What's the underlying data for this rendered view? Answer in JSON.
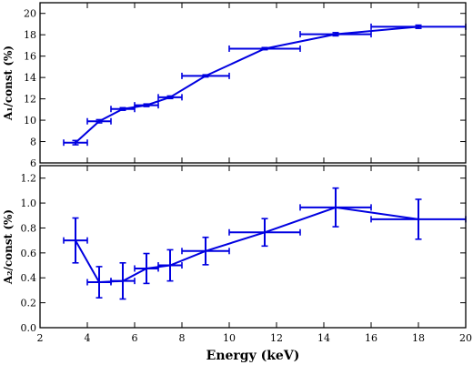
{
  "chart_data": [
    {
      "type": "line",
      "panel": "top",
      "ylabel": "A₁/const (%)",
      "xlabel": "",
      "xlim": [
        2,
        20
      ],
      "ylim": [
        6,
        21
      ],
      "x_ticks": [
        2,
        4,
        6,
        8,
        10,
        12,
        14,
        16,
        18,
        20
      ],
      "y_ticks": [
        6,
        8,
        10,
        12,
        14,
        16,
        18,
        20
      ],
      "y_tick_labels": [
        "6",
        "8",
        "10",
        "12",
        "14",
        "16",
        "18",
        "20"
      ],
      "grid": false,
      "color": "#0000e0",
      "series": [
        {
          "points": [
            {
              "x": 3.5,
              "xmin": 3.0,
              "xmax": 4.0,
              "y": 7.9,
              "yerr": 0.2
            },
            {
              "x": 4.5,
              "xmin": 4.0,
              "xmax": 5.0,
              "y": 9.9,
              "yerr": 0.15
            },
            {
              "x": 5.5,
              "xmin": 5.0,
              "xmax": 6.0,
              "y": 11.05,
              "yerr": 0.12
            },
            {
              "x": 6.5,
              "xmin": 6.0,
              "xmax": 7.0,
              "y": 11.4,
              "yerr": 0.12
            },
            {
              "x": 7.5,
              "xmin": 7.0,
              "xmax": 8.0,
              "y": 12.15,
              "yerr": 0.12
            },
            {
              "x": 9.0,
              "xmin": 8.0,
              "xmax": 10.0,
              "y": 14.15,
              "yerr": 0.1
            },
            {
              "x": 11.5,
              "xmin": 10.0,
              "xmax": 13.0,
              "y": 16.7,
              "yerr": 0.1
            },
            {
              "x": 14.5,
              "xmin": 13.0,
              "xmax": 16.0,
              "y": 18.05,
              "yerr": 0.15
            },
            {
              "x": 18.0,
              "xmin": 16.0,
              "xmax": 20.0,
              "y": 18.75,
              "yerr": 0.15
            }
          ]
        }
      ]
    },
    {
      "type": "line",
      "panel": "bottom",
      "ylabel": "A₂/const (%)",
      "xlabel": "Energy (keV)",
      "xlim": [
        2,
        20
      ],
      "ylim": [
        0,
        1.3
      ],
      "x_ticks": [
        2,
        4,
        6,
        8,
        10,
        12,
        14,
        16,
        18,
        20
      ],
      "x_tick_labels": [
        "2",
        "4",
        "6",
        "8",
        "10",
        "12",
        "14",
        "16",
        "18",
        "20"
      ],
      "y_ticks": [
        0.0,
        0.2,
        0.4,
        0.6,
        0.8,
        1.0,
        1.2
      ],
      "y_tick_labels": [
        "0.0",
        "0.2",
        "0.4",
        "0.6",
        "0.8",
        "1.0",
        "1.2"
      ],
      "grid": false,
      "color": "#0000e0",
      "series": [
        {
          "points": [
            {
              "x": 3.5,
              "xmin": 3.0,
              "xmax": 4.0,
              "y": 0.7,
              "yerr": 0.18
            },
            {
              "x": 4.5,
              "xmin": 4.0,
              "xmax": 5.0,
              "y": 0.365,
              "yerr": 0.125
            },
            {
              "x": 5.5,
              "xmin": 5.0,
              "xmax": 6.0,
              "y": 0.375,
              "yerr": 0.145
            },
            {
              "x": 6.5,
              "xmin": 6.0,
              "xmax": 7.0,
              "y": 0.475,
              "yerr": 0.12
            },
            {
              "x": 7.5,
              "xmin": 7.0,
              "xmax": 8.0,
              "y": 0.5,
              "yerr": 0.125
            },
            {
              "x": 9.0,
              "xmin": 8.0,
              "xmax": 10.0,
              "y": 0.615,
              "yerr": 0.11
            },
            {
              "x": 11.5,
              "xmin": 10.0,
              "xmax": 13.0,
              "y": 0.765,
              "yerr": 0.11
            },
            {
              "x": 14.5,
              "xmin": 13.0,
              "xmax": 16.0,
              "y": 0.965,
              "yerr": 0.155
            },
            {
              "x": 18.0,
              "xmin": 16.0,
              "xmax": 20.0,
              "y": 0.87,
              "yerr": 0.16
            }
          ]
        }
      ]
    }
  ]
}
